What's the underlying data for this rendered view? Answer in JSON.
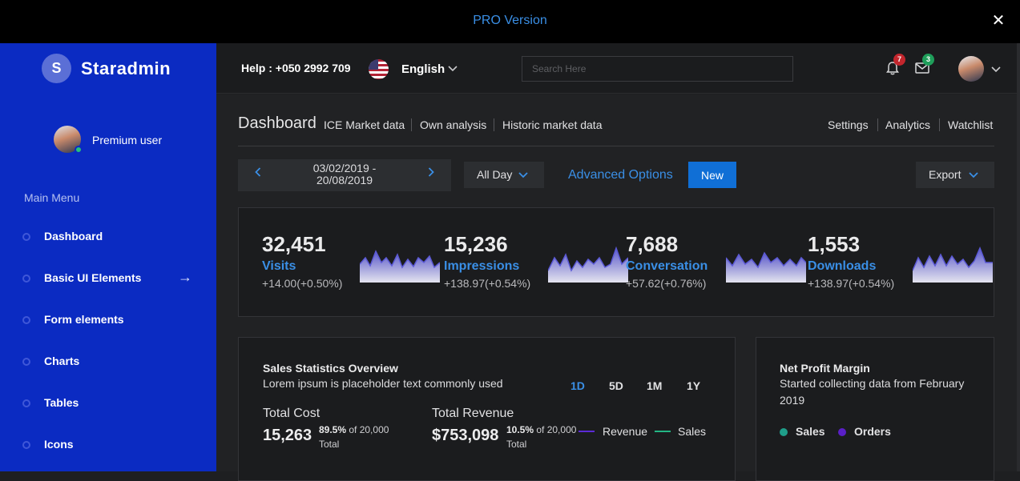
{
  "topbar": {
    "pro_label": "PRO Version",
    "close_icon": "close-icon"
  },
  "sidebar": {
    "logo_letter": "S",
    "brand": "Staradmin",
    "user": "Premium user",
    "menu_title": "Main Menu",
    "items": [
      {
        "label": "Dashboard",
        "icon": "circle-bullet-icon"
      },
      {
        "label": "Basic UI Elements",
        "icon": "circle-bullet-icon",
        "has_arrow": true
      },
      {
        "label": "Form elements",
        "icon": "circle-bullet-icon"
      },
      {
        "label": "Charts",
        "icon": "circle-bullet-icon"
      },
      {
        "label": "Tables",
        "icon": "circle-bullet-icon"
      },
      {
        "label": "Icons",
        "icon": "circle-bullet-icon"
      }
    ]
  },
  "header": {
    "help": "Help : +050 2992 709",
    "language": "English",
    "search_placeholder": "Search Here",
    "notifications_count": "7",
    "messages_count": "3",
    "colors": {
      "notif_badge": "#c3262d",
      "msg_badge": "#1f9e5a"
    }
  },
  "breadcrumb": {
    "title": "Dashboard",
    "left_links": [
      "ICE Market data",
      "Own analysis",
      "Historic market data"
    ],
    "right_links": [
      "Settings",
      "Analytics",
      "Watchlist"
    ]
  },
  "toolbar": {
    "date_range_line1": "03/02/2019 -",
    "date_range_line2": "20/08/2019",
    "period": "All Day",
    "advanced_options": "Advanced Options",
    "new_label": "New",
    "export_label": "Export"
  },
  "stats": [
    {
      "value": "32,451",
      "label": "Visits",
      "change": "+14.00(+0.50%)"
    },
    {
      "value": "15,236",
      "label": "Impressions",
      "change": "+138.97(+0.54%)"
    },
    {
      "value": "7,688",
      "label": "Conversation",
      "change": "+57.62(+0.76%)"
    },
    {
      "value": "1,553",
      "label": "Downloads",
      "change": "+138.97(+0.54%)"
    }
  ],
  "sales_overview": {
    "title": "Sales Statistics Overview",
    "subtitle": "Lorem ipsum is placeholder text commonly used",
    "ranges": [
      "1D",
      "5D",
      "1M",
      "1Y"
    ],
    "active_range": "1D",
    "total_cost_label": "Total Cost",
    "total_cost_value": "15,263",
    "total_cost_pct": "89.5%",
    "total_cost_of": " of 20,000",
    "total_cost_total": "Total",
    "total_revenue_label": "Total Revenue",
    "total_revenue_value": "$753,098",
    "total_revenue_pct": "10.5%",
    "total_revenue_of": " of 20,000",
    "total_revenue_total": "Total",
    "legend": [
      {
        "name": "Revenue",
        "color": "#5b2bd6"
      },
      {
        "name": "Sales",
        "color": "#23b584"
      }
    ]
  },
  "net_profit": {
    "title": "Net Profit Margin",
    "subtitle_line1": "Started collecting data from February",
    "subtitle_line2": "2019",
    "legend": [
      {
        "name": "Sales",
        "color": "#1f9e8a"
      },
      {
        "name": "Orders",
        "color": "#5a1fc7"
      }
    ]
  }
}
